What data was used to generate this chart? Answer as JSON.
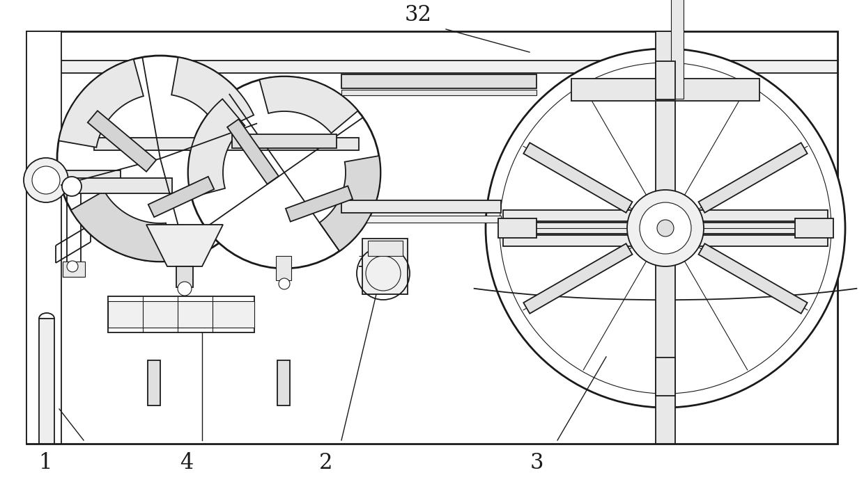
{
  "bg_color": "#ffffff",
  "line_color": "#1a1a1a",
  "lw_thin": 0.8,
  "lw_med": 1.3,
  "lw_thick": 2.0,
  "fig_width": 12.4,
  "fig_height": 6.93,
  "label_fontsize": 22
}
